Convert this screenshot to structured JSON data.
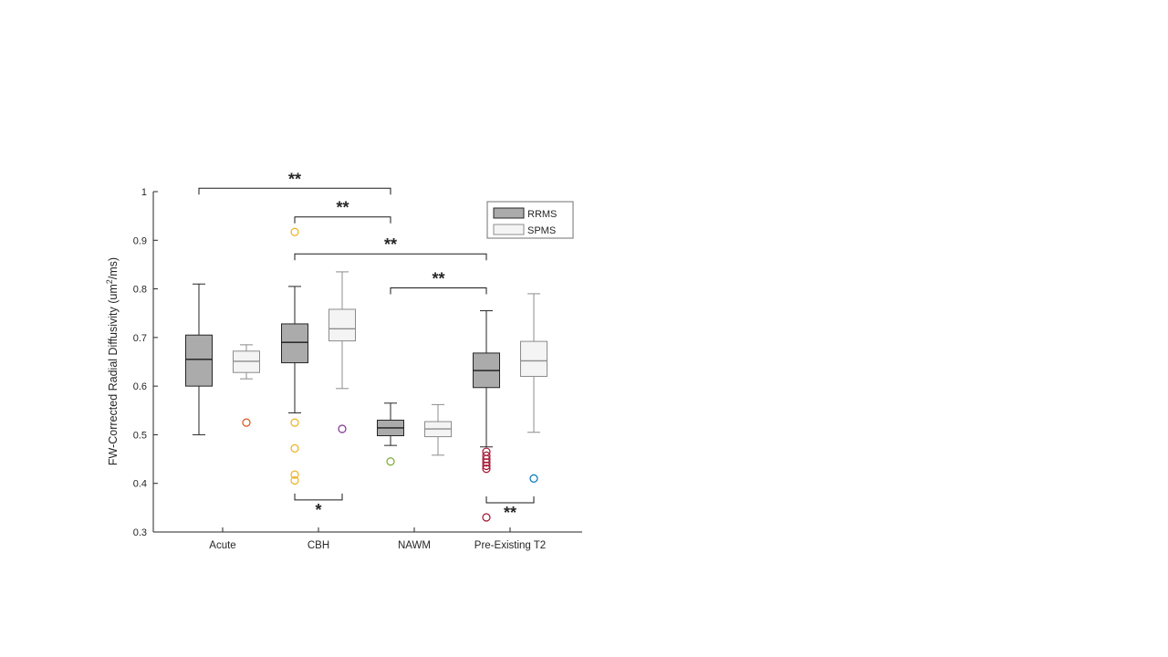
{
  "figure": {
    "ylabel": {
      "pre": "FW-Corrected Radial Diffusivity (um",
      "sup": "2",
      "post": "/ms)"
    }
  },
  "legend": {
    "items": [
      {
        "label": "RRMS",
        "fill": "#ababab",
        "edge": "#262626"
      },
      {
        "label": "SPMS",
        "fill": "#f4f4f4",
        "edge": "#8c8c8c"
      }
    ]
  },
  "chart_data": {
    "type": "boxplot",
    "title": "",
    "xlabel": "",
    "ylabel": "FW-Corrected Radial Diffusivity (um^2/ms)",
    "ylim": [
      0.3,
      1.0
    ],
    "yticks": [
      0.3,
      0.4,
      0.5,
      0.6,
      0.7,
      0.8,
      0.9,
      1
    ],
    "ytick_labels": [
      "0.3",
      "0.4",
      "0.5",
      "0.6",
      "0.7",
      "0.8",
      "0.9",
      "1"
    ],
    "categories": [
      "Acute",
      "CBH",
      "NAWM",
      "Pre-Existing T2"
    ],
    "grid": false,
    "legend_position": "top-right-inside",
    "series": [
      {
        "name": "RRMS",
        "fill": "#ababab",
        "edge": "#262626",
        "median_color": "#1a1a1a",
        "boxes": [
          {
            "whisker_low": 0.5,
            "q1": 0.6,
            "median": 0.655,
            "q3": 0.705,
            "whisker_high": 0.81,
            "outliers": [],
            "outlier_color": "#D95319"
          },
          {
            "whisker_low": 0.545,
            "q1": 0.648,
            "median": 0.69,
            "q3": 0.728,
            "whisker_high": 0.805,
            "outliers": [
              0.917,
              0.525,
              0.472,
              0.418,
              0.406
            ],
            "outlier_color": "#EDB120"
          },
          {
            "whisker_low": 0.478,
            "q1": 0.498,
            "median": 0.514,
            "q3": 0.53,
            "whisker_high": 0.565,
            "outliers": [
              0.445
            ],
            "outlier_color": "#77AC30"
          },
          {
            "whisker_low": 0.475,
            "q1": 0.597,
            "median": 0.632,
            "q3": 0.668,
            "whisker_high": 0.755,
            "outliers": [
              0.465,
              0.457,
              0.45,
              0.443,
              0.436,
              0.43,
              0.33
            ],
            "outlier_color": "#A2142F"
          }
        ]
      },
      {
        "name": "SPMS",
        "fill": "#f4f4f4",
        "edge": "#8c8c8c",
        "median_color": "#8c8c8c",
        "boxes": [
          {
            "whisker_low": 0.615,
            "q1": 0.628,
            "median": 0.651,
            "q3": 0.672,
            "whisker_high": 0.685,
            "outliers": [
              0.525
            ],
            "outlier_color": "#D95319"
          },
          {
            "whisker_low": 0.595,
            "q1": 0.693,
            "median": 0.718,
            "q3": 0.758,
            "whisker_high": 0.835,
            "outliers": [
              0.512
            ],
            "outlier_color": "#7E2F8E"
          },
          {
            "whisker_low": 0.458,
            "q1": 0.496,
            "median": 0.512,
            "q3": 0.527,
            "whisker_high": 0.562,
            "outliers": [],
            "outlier_color": "#0072BD"
          },
          {
            "whisker_low": 0.505,
            "q1": 0.62,
            "median": 0.652,
            "q3": 0.692,
            "whisker_high": 0.79,
            "outliers": [
              0.41
            ],
            "outlier_color": "#0072BD"
          }
        ]
      }
    ],
    "significance": [
      {
        "label": "**",
        "from": {
          "cat": 0,
          "series": 0
        },
        "to": {
          "cat": 2,
          "series": 0
        },
        "y": 1.007,
        "dir": "down"
      },
      {
        "label": "**",
        "from": {
          "cat": 1,
          "series": 0
        },
        "to": {
          "cat": 2,
          "series": 0
        },
        "y": 0.948,
        "dir": "down"
      },
      {
        "label": "**",
        "from": {
          "cat": 1,
          "series": 0
        },
        "to": {
          "cat": 3,
          "series": 0
        },
        "y": 0.872,
        "dir": "down"
      },
      {
        "label": "**",
        "from": {
          "cat": 2,
          "series": 0
        },
        "to": {
          "cat": 3,
          "series": 0
        },
        "y": 0.802,
        "dir": "down"
      },
      {
        "label": "*",
        "from": {
          "cat": 1,
          "series": 0
        },
        "to": {
          "cat": 1,
          "series": 1
        },
        "y": 0.366,
        "dir": "up"
      },
      {
        "label": "**",
        "from": {
          "cat": 3,
          "series": 0
        },
        "to": {
          "cat": 3,
          "series": 1
        },
        "y": 0.36,
        "dir": "up"
      }
    ]
  }
}
